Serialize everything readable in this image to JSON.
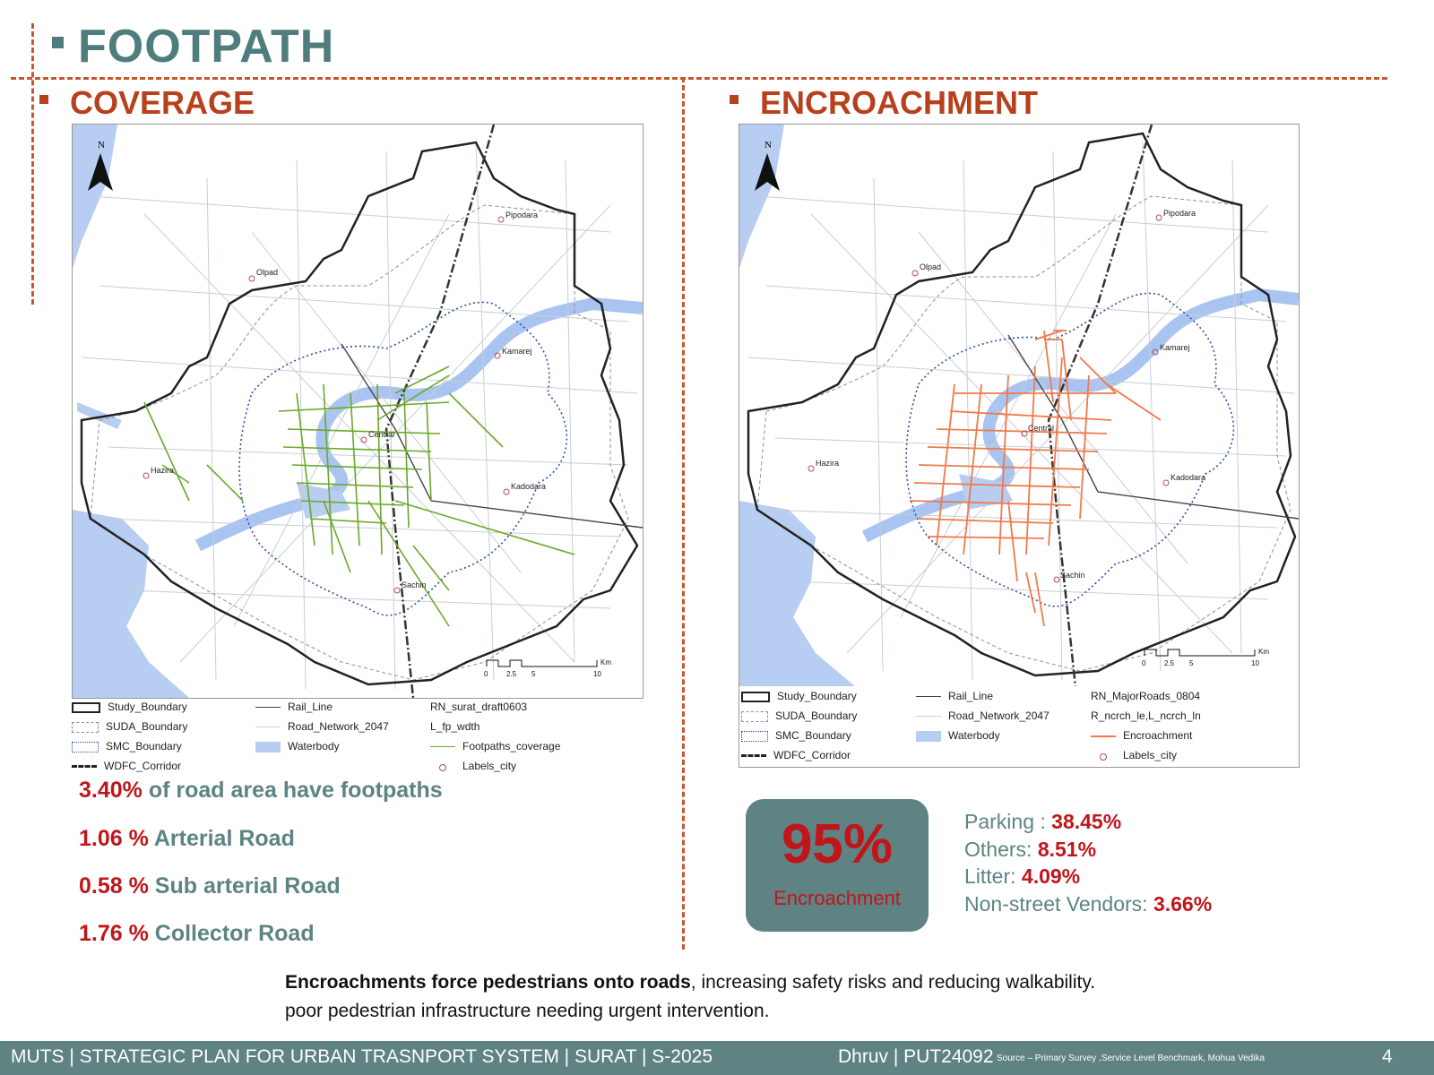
{
  "page": {
    "title": "FOOTPATH"
  },
  "coverage": {
    "title": "COVERAGE",
    "map": {
      "north": "N",
      "places": [
        "Pipodara",
        "Olpad",
        "Kamarej",
        "Central",
        "Hazira",
        "Kadodara",
        "Sachin"
      ],
      "scale": {
        "ticks": [
          "0",
          "2.5",
          "5",
          "10"
        ],
        "unit": "Km"
      },
      "legend": {
        "study_boundary": "Study_Boundary",
        "suda_boundary": "SUDA_Boundary",
        "smc_boundary": "SMC_Boundary",
        "wdfc_corridor": "WDFC_Corridor",
        "rail_line": "Rail_Line",
        "road_network": "Road_Network_2047",
        "waterbody": "Waterbody",
        "layer_name": "RN_surat_draft0603",
        "field_name": "L_fp_wdth",
        "footpaths_coverage": "Footpaths_coverage",
        "labels_city": "Labels_city"
      }
    },
    "stats": [
      {
        "value": "3.40%",
        "text": " of road area have footpaths"
      },
      {
        "value": "1.06 %",
        "text": " Arterial Road"
      },
      {
        "value": "0.58 %",
        "text": " Sub arterial Road"
      },
      {
        "value": "1.76 %",
        "text": " Collector Road"
      }
    ]
  },
  "encroachment": {
    "title": "ENCROACHMENT",
    "map": {
      "north": "N",
      "places": [
        "Pipodara",
        "Olpad",
        "Kamarej",
        "Central",
        "Hazira",
        "Kadodara",
        "Sachin"
      ],
      "scale": {
        "ticks": [
          "0",
          "2.5",
          "5",
          "10"
        ],
        "unit": "Km"
      },
      "legend": {
        "study_boundary": "Study_Boundary",
        "suda_boundary": "SUDA_Boundary",
        "smc_boundary": "SMC_Boundary",
        "wdfc_corridor": "WDFC_Corridor",
        "rail_line": "Rail_Line",
        "road_network": "Road_Network_2047",
        "waterbody": "Waterbody",
        "layer_name": "RN_MajorRoads_0804",
        "field_name": "R_ncrch_le,L_ncrch_ln",
        "encroachment": "Encroachment",
        "labels_city": "Labels_city"
      }
    },
    "summary": {
      "value": "95%",
      "label": "Encroachment"
    },
    "breakdown": [
      {
        "label": "Parking : ",
        "value": "38.45%"
      },
      {
        "label": "Others: ",
        "value": "8.51%"
      },
      {
        "label": "Litter: ",
        "value": "4.09%"
      },
      {
        "label": "Non-street Vendors: ",
        "value": "3.66%"
      }
    ]
  },
  "note": {
    "bold": "Encroachments force pedestrians onto roads",
    "rest": ", increasing safety risks and reducing walkability.",
    "line2": "poor pedestrian infrastructure needing urgent intervention."
  },
  "footer": {
    "program": "MUTS |  STRATEGIC PLAN FOR URBAN TRASNPORT SYSTEM | SURAT | S-2025",
    "author": "Dhruv | PUT24092",
    "source": "Source – Primary Survey ,Service Level Benchmark, Mohua Vedika",
    "page_number": "4"
  },
  "colors": {
    "title_teal": "#4f7c7c",
    "section_red": "#b8401c",
    "stat_red": "#c0151b",
    "footpath_green": "#6aa82a",
    "encroachment_orange": "#f07a4a",
    "waterbody": "#b7cdf2",
    "footer_bg": "#5f8283"
  }
}
